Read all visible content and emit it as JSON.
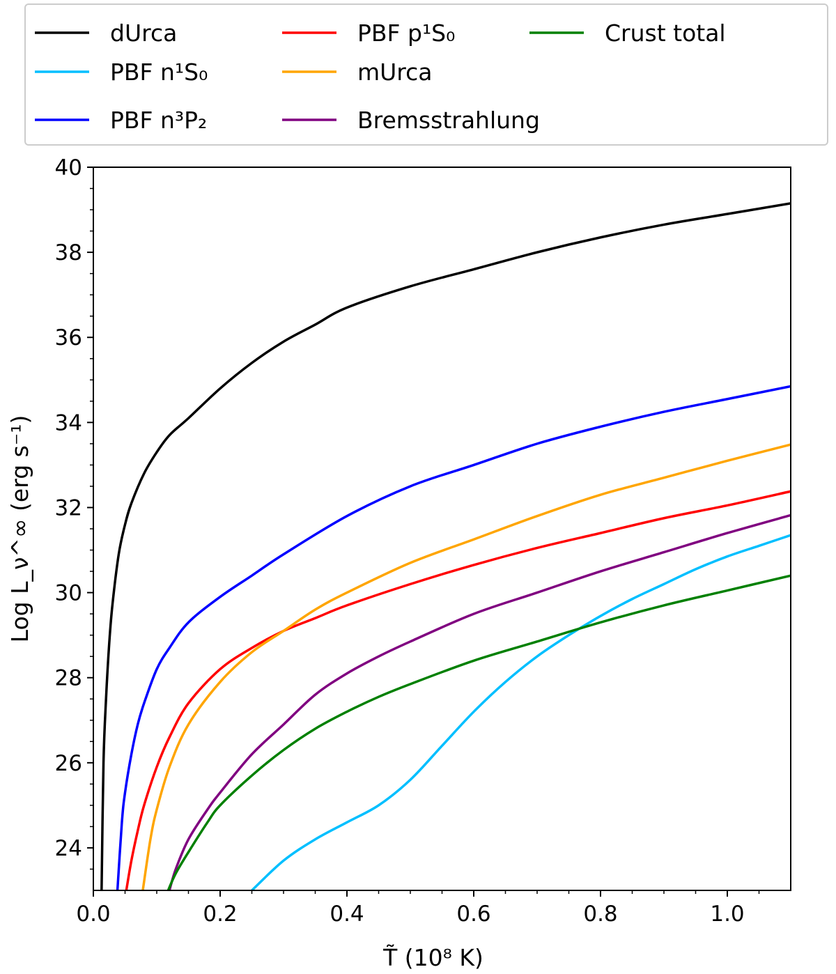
{
  "chart_data": {
    "type": "line",
    "title": "",
    "xlabel": "T̃ (10⁸ K)",
    "ylabel": "Log L_ν^∞ (erg s⁻¹)",
    "xlim": [
      0.0,
      1.1
    ],
    "ylim": [
      23.0,
      40.0
    ],
    "x_ticks": [
      "0.0",
      "0.2",
      "0.4",
      "0.6",
      "0.8",
      "1.0"
    ],
    "y_ticks": [
      "24",
      "26",
      "28",
      "30",
      "32",
      "34",
      "36",
      "38",
      "40"
    ],
    "grid": false,
    "legend_position": "top",
    "series": [
      {
        "name": "dUrca",
        "color": "#000000",
        "x": [
          0.013,
          0.016,
          0.02,
          0.025,
          0.03,
          0.04,
          0.05,
          0.06,
          0.08,
          0.1,
          0.12,
          0.15,
          0.2,
          0.25,
          0.3,
          0.35,
          0.4,
          0.5,
          0.6,
          0.7,
          0.8,
          0.9,
          1.0,
          1.1
        ],
        "y": [
          23.0,
          26.0,
          27.5,
          28.8,
          29.7,
          30.9,
          31.6,
          32.1,
          32.8,
          33.3,
          33.7,
          34.1,
          34.8,
          35.4,
          35.9,
          36.3,
          36.7,
          37.2,
          37.6,
          38.0,
          38.35,
          38.65,
          38.9,
          39.15
        ]
      },
      {
        "name": "PBF n¹S₀",
        "color": "#00BFFF",
        "x": [
          0.25,
          0.3,
          0.35,
          0.4,
          0.45,
          0.5,
          0.55,
          0.6,
          0.65,
          0.7,
          0.75,
          0.8,
          0.85,
          0.9,
          0.95,
          1.0,
          1.05,
          1.1
        ],
        "y": [
          23.0,
          23.7,
          24.2,
          24.6,
          25.0,
          25.6,
          26.4,
          27.2,
          27.9,
          28.5,
          29.0,
          29.45,
          29.85,
          30.2,
          30.55,
          30.85,
          31.1,
          31.35
        ]
      },
      {
        "name": "PBF n³P₂",
        "color": "#0000FF",
        "x": [
          0.038,
          0.045,
          0.05,
          0.06,
          0.07,
          0.08,
          0.1,
          0.12,
          0.15,
          0.2,
          0.25,
          0.3,
          0.4,
          0.5,
          0.6,
          0.7,
          0.8,
          0.9,
          1.0,
          1.1
        ],
        "y": [
          23.0,
          24.6,
          25.3,
          26.2,
          26.9,
          27.4,
          28.2,
          28.7,
          29.3,
          29.9,
          30.4,
          30.9,
          31.8,
          32.5,
          33.0,
          33.5,
          33.9,
          34.25,
          34.55,
          34.85
        ]
      },
      {
        "name": "PBF p¹S₀",
        "color": "#FF0000",
        "x": [
          0.052,
          0.06,
          0.07,
          0.08,
          0.1,
          0.12,
          0.15,
          0.2,
          0.25,
          0.3,
          0.35,
          0.4,
          0.5,
          0.6,
          0.7,
          0.8,
          0.9,
          1.0,
          1.1
        ],
        "y": [
          23.0,
          23.7,
          24.4,
          25.0,
          25.9,
          26.6,
          27.4,
          28.2,
          28.7,
          29.1,
          29.4,
          29.7,
          30.2,
          30.65,
          31.05,
          31.4,
          31.75,
          32.05,
          32.38
        ]
      },
      {
        "name": "mUrca",
        "color": "#FFA500",
        "x": [
          0.078,
          0.09,
          0.1,
          0.12,
          0.15,
          0.2,
          0.25,
          0.3,
          0.35,
          0.4,
          0.5,
          0.6,
          0.7,
          0.8,
          0.9,
          1.0,
          1.1
        ],
        "y": [
          23.0,
          24.2,
          24.9,
          25.9,
          26.9,
          27.9,
          28.6,
          29.1,
          29.6,
          30.0,
          30.7,
          31.25,
          31.8,
          32.3,
          32.7,
          33.1,
          33.48
        ]
      },
      {
        "name": "Bremsstrahlung",
        "color": "#800080",
        "x": [
          0.12,
          0.13,
          0.15,
          0.18,
          0.2,
          0.25,
          0.3,
          0.35,
          0.4,
          0.45,
          0.5,
          0.6,
          0.7,
          0.8,
          0.9,
          1.0,
          1.1
        ],
        "y": [
          23.0,
          23.5,
          24.2,
          24.9,
          25.3,
          26.2,
          26.9,
          27.6,
          28.1,
          28.5,
          28.85,
          29.5,
          30.0,
          30.5,
          30.95,
          31.4,
          31.82
        ]
      },
      {
        "name": "Crust total",
        "color": "#008000",
        "x": [
          0.118,
          0.13,
          0.15,
          0.18,
          0.2,
          0.25,
          0.3,
          0.35,
          0.4,
          0.45,
          0.5,
          0.6,
          0.7,
          0.8,
          0.9,
          1.0,
          1.1
        ],
        "y": [
          23.0,
          23.4,
          23.9,
          24.6,
          25.0,
          25.7,
          26.3,
          26.8,
          27.2,
          27.55,
          27.85,
          28.4,
          28.85,
          29.3,
          29.7,
          30.05,
          30.4
        ]
      }
    ]
  }
}
